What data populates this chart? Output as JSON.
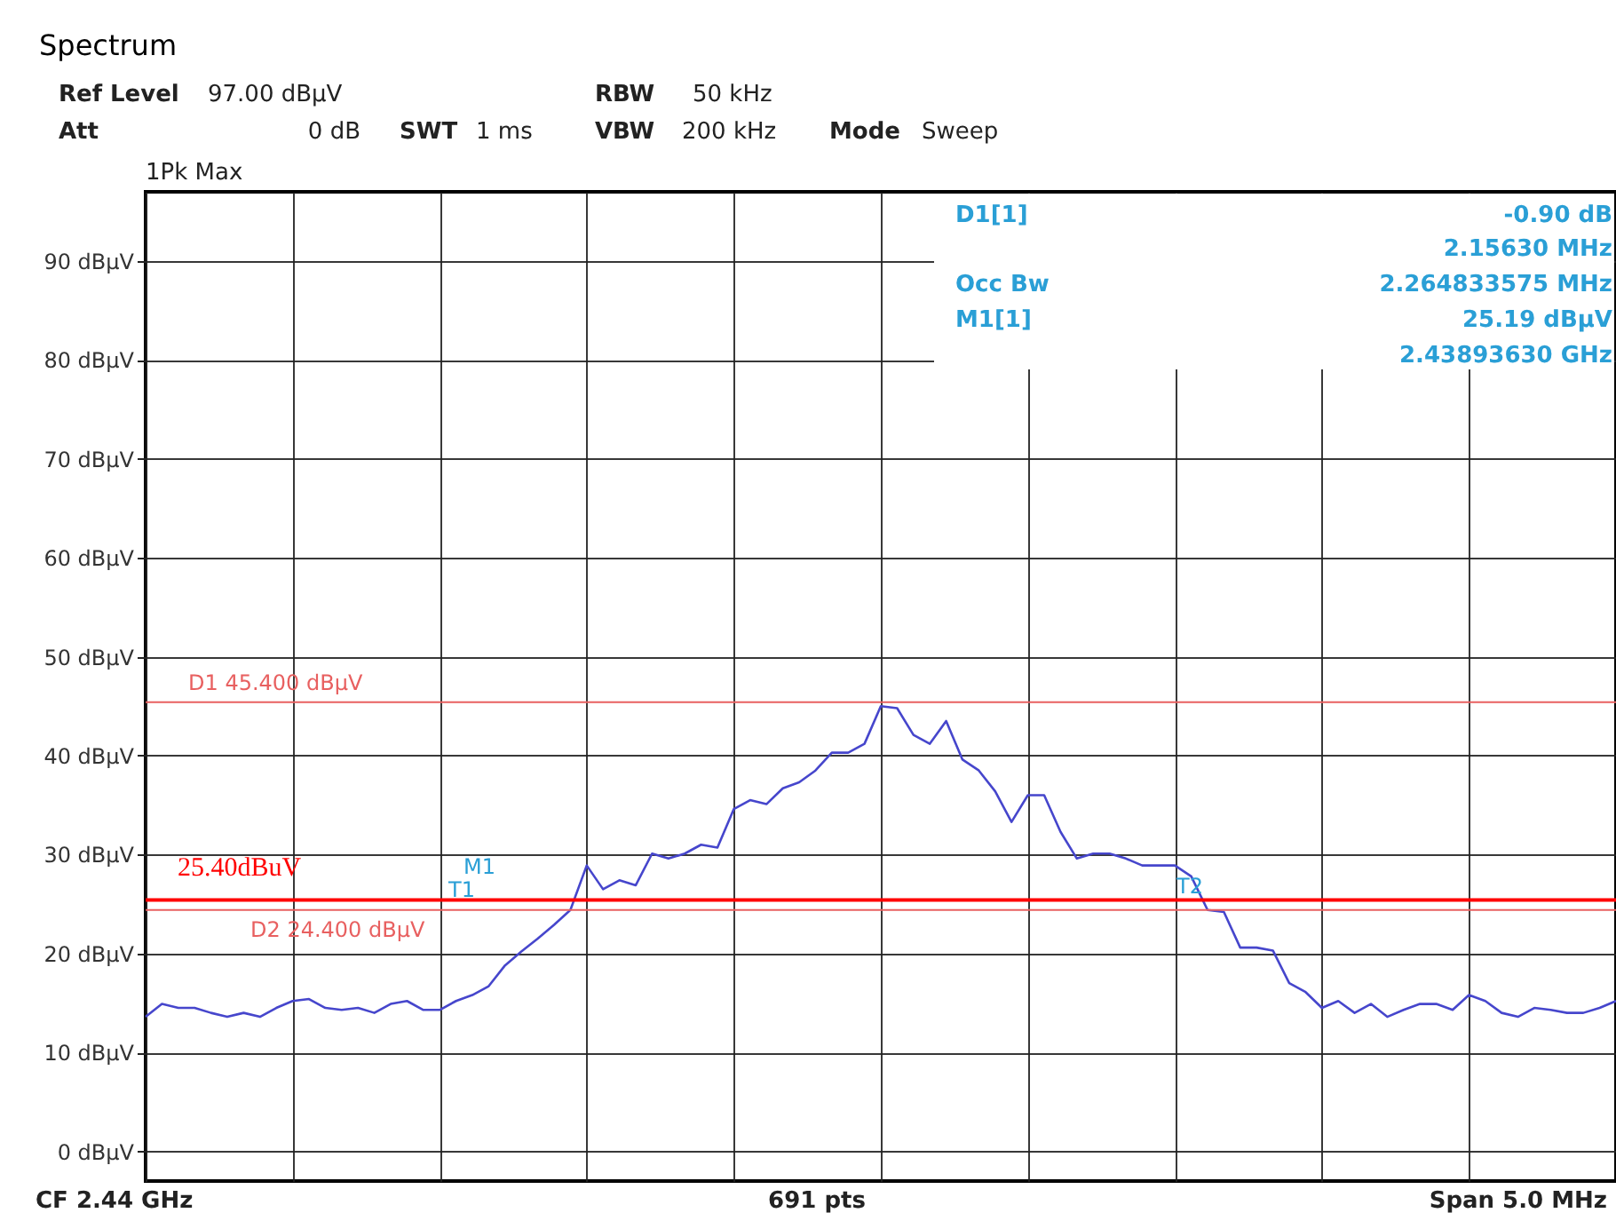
{
  "chart_data": {
    "type": "line",
    "title": "Spectrum",
    "categories": [
      null,
      null,
      null,
      null,
      null,
      null,
      null,
      null,
      null,
      null,
      null,
      null,
      null,
      null,
      null,
      null,
      null,
      null,
      null,
      null,
      null,
      null,
      null,
      null,
      null,
      null,
      null,
      null,
      null,
      null,
      null,
      null,
      null,
      null,
      null,
      null,
      null,
      null,
      null,
      null,
      null,
      null,
      null,
      null,
      null,
      null,
      null,
      null,
      null,
      null,
      null,
      null,
      null,
      null,
      null,
      null,
      null,
      null,
      null,
      null,
      null,
      null,
      null,
      null,
      null,
      null,
      null,
      null,
      null,
      null,
      null,
      null,
      null,
      null,
      null,
      null,
      null,
      null,
      null,
      null,
      null,
      null,
      null,
      null,
      null,
      null,
      null,
      null,
      null,
      null,
      null
    ],
    "series": [
      {
        "color": "#4646cc",
        "values": [
          13.6,
          14.9,
          14.5,
          14.5,
          14.0,
          13.6,
          14.0,
          13.6,
          14.5,
          15.2,
          15.4,
          14.5,
          14.3,
          14.5,
          14.0,
          14.9,
          15.2,
          14.3,
          14.3,
          15.2,
          15.8,
          16.7,
          18.8,
          20.2,
          21.5,
          22.9,
          24.4,
          28.9,
          26.5,
          27.4,
          26.9,
          30.1,
          29.6,
          30.1,
          31.0,
          30.7,
          34.6,
          35.5,
          35.1,
          36.7,
          37.3,
          38.5,
          40.3,
          40.3,
          41.2,
          45.0,
          44.8,
          42.1,
          41.2,
          43.5,
          39.6,
          38.5,
          36.4,
          33.3,
          36.0,
          36.0,
          32.3,
          29.6,
          30.1,
          30.1,
          29.6,
          28.9,
          28.9,
          28.9,
          27.8,
          24.4,
          24.2,
          20.6,
          20.6,
          20.3,
          17.0,
          16.1,
          14.5,
          15.2,
          14.0,
          14.9,
          13.6,
          14.3,
          14.9,
          14.9,
          14.3,
          15.8,
          15.2,
          14.0,
          13.6,
          14.5,
          14.3,
          14.0,
          14.0,
          14.5,
          15.2
        ]
      }
    ],
    "ylim": [
      -3,
      97
    ],
    "yticks": [
      {
        "value": 0,
        "label": "0 dBµV"
      },
      {
        "value": 10,
        "label": "10 dBµV"
      },
      {
        "value": 20,
        "label": "20 dBµV"
      },
      {
        "value": 30,
        "label": "30 dBµV"
      },
      {
        "value": 40,
        "label": "40 dBµV"
      },
      {
        "value": 50,
        "label": "50 dBµV"
      },
      {
        "value": 60,
        "label": "60 dBµV"
      },
      {
        "value": 70,
        "label": "70 dBµV"
      },
      {
        "value": 80,
        "label": "80 dBµV"
      },
      {
        "value": 90,
        "label": "90 dBµV"
      }
    ],
    "grid": true,
    "marker": "none",
    "line_style": "solid",
    "ref_lines": [
      {
        "axis": "y",
        "value": 45.4,
        "label": "D1  45.400 dBµV",
        "color": "#e86060"
      },
      {
        "axis": "y",
        "value": 25.4,
        "label": "25.40dBuV",
        "color": "#ff0000"
      },
      {
        "axis": "y",
        "value": 24.4,
        "label": "D2  24.400 dBµV",
        "color": "#e86060"
      }
    ],
    "annotations": [
      "Ref Level",
      "97.00 dBµV",
      "Att",
      "0 dB",
      "SWT",
      "1 ms",
      "RBW",
      "50 kHz",
      "VBW",
      "200 kHz",
      "Mode",
      "Sweep",
      "1Pk Max",
      "D1[1]",
      "-0.90 dB",
      "2.15630 MHz",
      "Occ Bw",
      "2.264833575 MHz",
      "M1[1]",
      "25.19 dBµV",
      "2.43893630 GHz",
      "M1",
      "T1",
      "T2",
      "CF 2.44 GHz",
      "691 pts",
      "Span 5.0 MHz"
    ]
  }
}
